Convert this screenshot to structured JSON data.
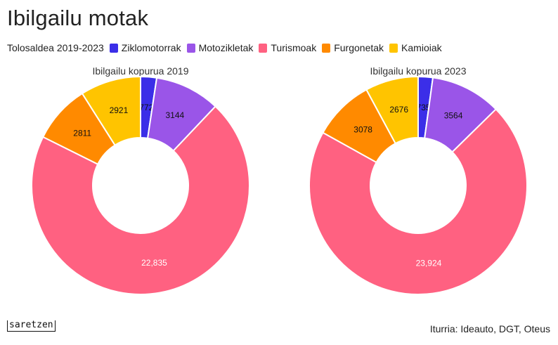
{
  "title": "Ibilgailu motak",
  "legend": {
    "region": "Tolosaldea 2019-2023",
    "items": [
      {
        "label": "Ziklomotorrak",
        "color": "#3b2ee8"
      },
      {
        "label": "Motozikletak",
        "color": "#9a55e8"
      },
      {
        "label": "Turismoak",
        "color": "#ff6181"
      },
      {
        "label": "Furgonetak",
        "color": "#ff8a00"
      },
      {
        "label": "Kamioiak",
        "color": "#ffc400"
      }
    ]
  },
  "chart_data": [
    {
      "type": "pie",
      "donut": true,
      "title": "Ibilgailu kopurua 2019",
      "categories": [
        "Ziklomotorrak",
        "Motozikletak",
        "Turismoak",
        "Furgonetak",
        "Kamioiak"
      ],
      "values": [
        772,
        3144,
        22835,
        2811,
        2921
      ],
      "labels": [
        "772",
        "3144",
        "22,835",
        "2811",
        "2921"
      ]
    },
    {
      "type": "pie",
      "donut": true,
      "title": "Ibilgailu kopurua 2023",
      "categories": [
        "Ziklomotorrak",
        "Motozikletak",
        "Turismoak",
        "Furgonetak",
        "Kamioiak"
      ],
      "values": [
        735,
        3564,
        23924,
        3078,
        2676
      ],
      "labels": [
        "735",
        "3564",
        "23,924",
        "3078",
        "2676"
      ]
    }
  ],
  "footer": {
    "brand": "saretzen",
    "source": "Iturria: Ideauto, DGT, Oteus"
  }
}
